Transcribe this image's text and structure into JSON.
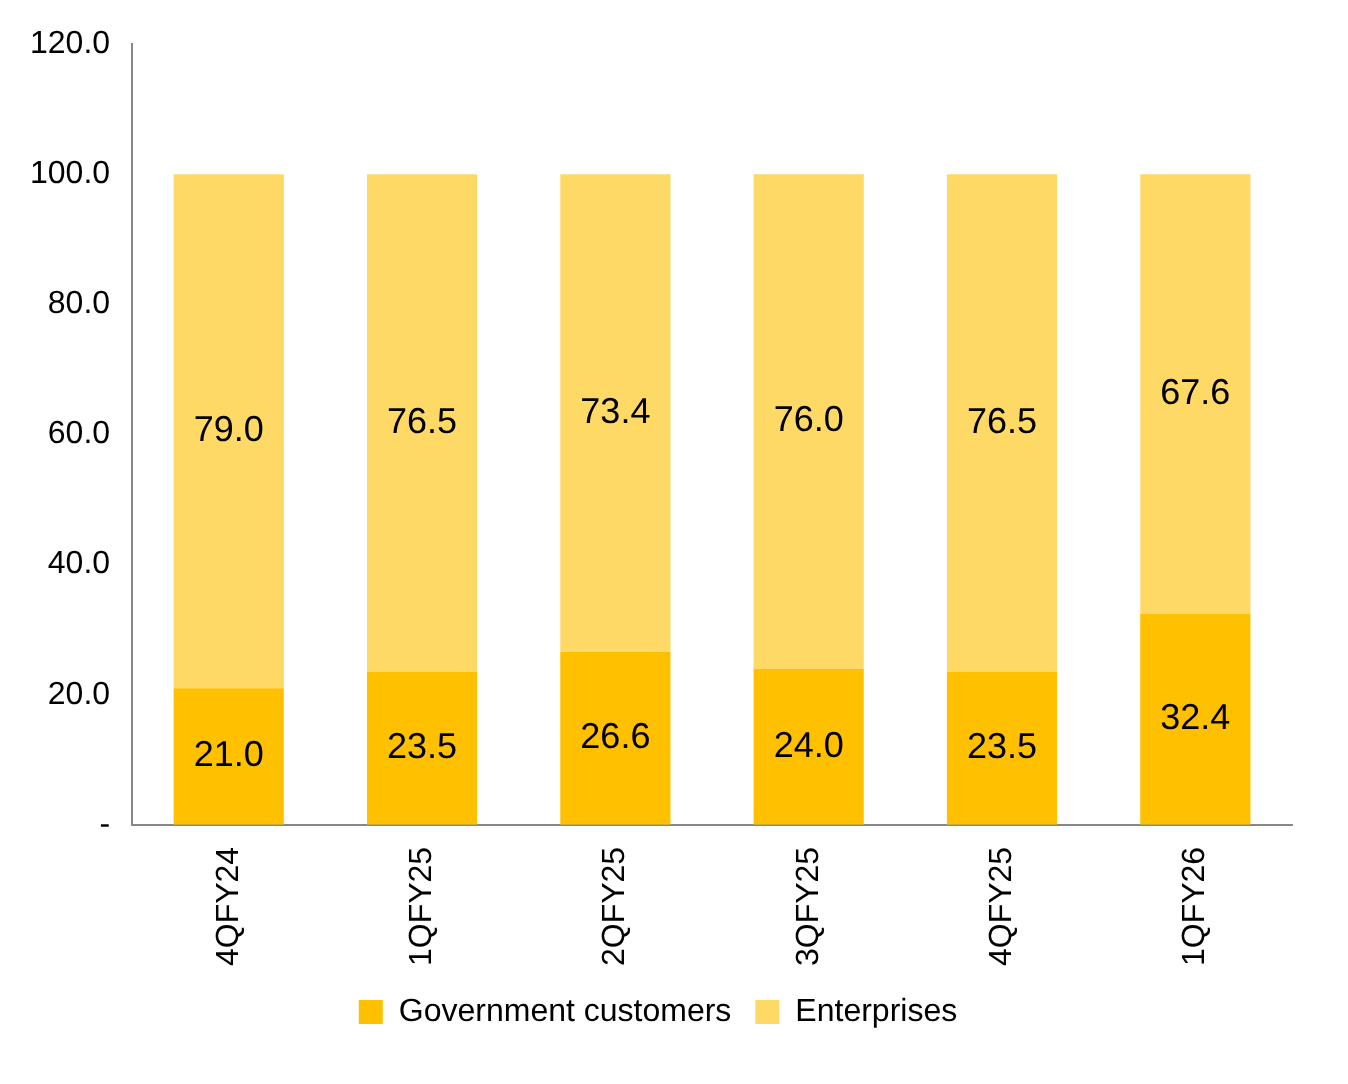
{
  "chart_data": {
    "type": "bar",
    "stacked": true,
    "categories": [
      "4QFY24",
      "1QFY25",
      "2QFY25",
      "3QFY25",
      "4QFY25",
      "1QFY26"
    ],
    "series": [
      {
        "name": "Government customers",
        "color": "#ffc000",
        "values": [
          21.0,
          23.5,
          26.6,
          24.0,
          23.5,
          32.4
        ],
        "value_labels": [
          "21.0",
          "23.5",
          "26.6",
          "24.0",
          "23.5",
          "32.4"
        ]
      },
      {
        "name": "Enterprises",
        "color": "#ffd966",
        "values": [
          79.0,
          76.5,
          73.4,
          76.0,
          76.5,
          67.6
        ],
        "value_labels": [
          "79.0",
          "76.5",
          "73.4",
          "76.0",
          "76.5",
          "67.6"
        ]
      }
    ],
    "ylim": [
      0,
      120
    ],
    "yticks": [
      {
        "value": 0,
        "label": "-"
      },
      {
        "value": 20,
        "label": "20.0"
      },
      {
        "value": 40,
        "label": "40.0"
      },
      {
        "value": 60,
        "label": "60.0"
      },
      {
        "value": 80,
        "label": "80.0"
      },
      {
        "value": 100,
        "label": "100.0"
      },
      {
        "value": 120,
        "label": "120.0"
      }
    ],
    "grid": false,
    "legend": "bottom"
  }
}
